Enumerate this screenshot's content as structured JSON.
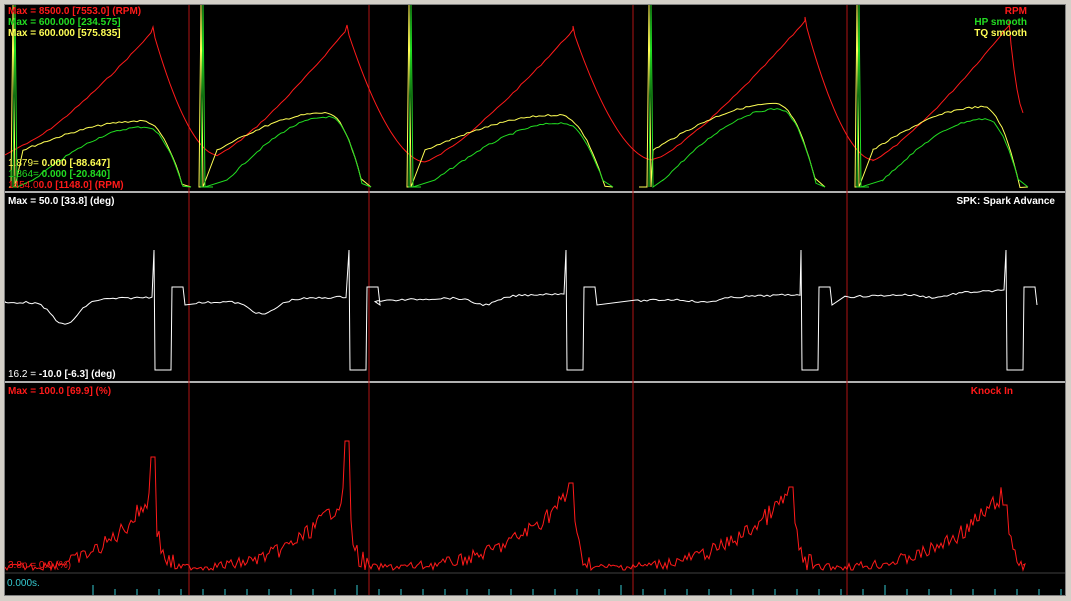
{
  "panels": {
    "top": {
      "rpm_max": "Max = 8500.0 [7553.0] (RPM)",
      "hp_max": "Max = 600.000 [234.575]",
      "tq_max": "Max = 600.000 [575.835]",
      "legend_rpm": "RPM",
      "legend_hp": "HP smooth",
      "legend_tq": "TQ smooth",
      "tq_min_prefix": "1.879=",
      "tq_min_value": "0.000 [-88.647]",
      "hp_min_prefix": "1.864=",
      "hp_min_value": "0.000 [-20.840]",
      "rpm_min": "1454.0",
      "rpm_min_value": "0.0 [1148.0] (RPM)"
    },
    "middle": {
      "max_label": "Max = 50.0 [33.8] (deg)",
      "legend": "SPK: Spark Advance",
      "min_prefix": "16.2 =",
      "min_value": "-10.0 [-6.3] (deg)"
    },
    "bottom": {
      "max_label": "Max = 100.0 [69.9] (%)",
      "legend": "Knock In",
      "min_label": "3.8n = 0.0 (%)"
    }
  },
  "time_axis": {
    "label": "0.000s."
  },
  "colors": {
    "rpm": "#ff1a1a",
    "hp": "#22dd22",
    "tq": "#ffff55",
    "spark": "#ffffff",
    "knock": "#ff1a1a",
    "marker": "#b01515",
    "tick": "#35c9d0",
    "divider": "#b0b0b0"
  }
}
